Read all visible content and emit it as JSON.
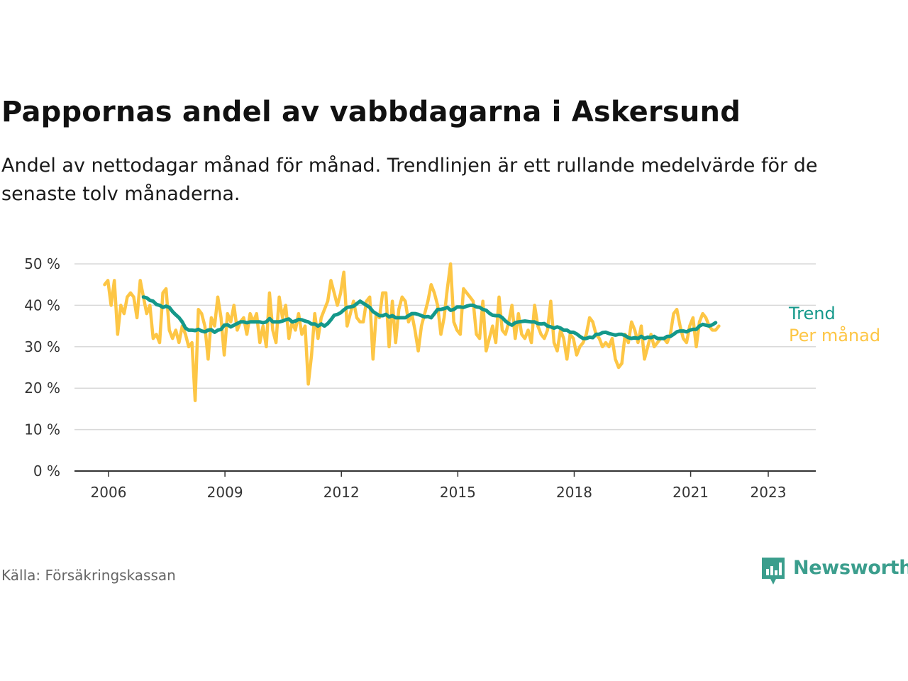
{
  "title": "Pappornas andel av vabbdagarna i Askersund",
  "subtitle": "Andel av nettodagar månad för månad. Trendlinjen är ett rullande medelvärde för de senaste tolv månaderna.",
  "source": "Källa: Försäkringskassan",
  "brand": "Newsworthy",
  "colors": {
    "trend": "#14988a",
    "monthly": "#fdc645",
    "grid": "#d9d9d9",
    "axis": "#333333",
    "brand": "#3b9e8d"
  },
  "chart_data": {
    "type": "line",
    "x_unit": "year",
    "xlim": [
      2006,
      2024.1
    ],
    "ylim": [
      0,
      50
    ],
    "y_ticks": [
      {
        "value": 0,
        "label": "0 %"
      },
      {
        "value": 10,
        "label": "10 %"
      },
      {
        "value": 20,
        "label": "20 %"
      },
      {
        "value": 30,
        "label": "30 %"
      },
      {
        "value": 40,
        "label": "40 %"
      },
      {
        "value": 50,
        "label": "50 %"
      }
    ],
    "x_ticks": [
      {
        "value": 2006,
        "label": "2006"
      },
      {
        "value": 2009,
        "label": "2009"
      },
      {
        "value": 2012,
        "label": "2012"
      },
      {
        "value": 2015,
        "label": "2015"
      },
      {
        "value": 2018,
        "label": "2018"
      },
      {
        "value": 2021,
        "label": "2021"
      },
      {
        "value": 2023,
        "label": "2023"
      }
    ],
    "grid": true,
    "series": [
      {
        "name": "Per månad",
        "x_start": 2005.9,
        "x_step": 0.0833,
        "values": [
          45,
          46,
          40,
          46,
          33,
          40,
          38,
          42,
          43,
          42,
          37,
          46,
          42,
          38,
          40,
          32,
          33,
          31,
          43,
          44,
          34,
          32,
          34,
          31,
          35,
          33,
          30,
          31,
          17,
          39,
          38,
          35,
          27,
          37,
          35,
          42,
          37,
          28,
          38,
          36,
          40,
          34,
          36,
          37,
          33,
          38,
          36,
          38,
          31,
          35,
          30,
          43,
          34,
          31,
          42,
          37,
          40,
          32,
          36,
          34,
          38,
          33,
          35,
          21,
          28,
          38,
          32,
          37,
          39,
          41,
          46,
          43,
          40,
          43,
          48,
          35,
          38,
          41,
          37,
          36,
          36,
          41,
          42,
          27,
          38,
          37,
          43,
          43,
          30,
          41,
          31,
          39,
          42,
          41,
          36,
          38,
          34,
          29,
          35,
          38,
          41,
          45,
          43,
          40,
          33,
          37,
          44,
          50,
          36,
          34,
          33,
          44,
          43,
          42,
          41,
          33,
          32,
          41,
          29,
          32,
          35,
          31,
          42,
          34,
          33,
          36,
          40,
          32,
          38,
          33,
          32,
          34,
          31,
          40,
          35,
          33,
          32,
          34,
          41,
          31,
          29,
          34,
          32,
          27,
          33,
          32,
          28,
          30,
          31,
          33,
          37,
          36,
          33,
          32,
          30,
          31,
          30,
          32,
          27,
          25,
          26,
          33,
          31,
          36,
          34,
          31,
          35,
          27,
          30,
          33,
          30,
          31,
          32,
          32,
          31,
          33,
          38,
          39,
          35,
          32,
          31,
          35,
          37,
          30,
          36,
          38,
          37,
          35,
          34,
          34,
          35
        ]
      },
      {
        "name": "Trend",
        "x_start": 2006.9,
        "x_step": 0.0833,
        "values": [
          42,
          41.8,
          41.2,
          41,
          40.2,
          40,
          39.5,
          39.8,
          39.5,
          38.5,
          37.7,
          37,
          36,
          34.5,
          34,
          34,
          33.9,
          34.2,
          33.8,
          33.6,
          34,
          34.1,
          33.5,
          34,
          34.2,
          35.2,
          35.3,
          34.8,
          35.2,
          35.6,
          36,
          36,
          35.8,
          36,
          36,
          36,
          36,
          35.8,
          36,
          36.8,
          36,
          36,
          36,
          36.2,
          36.5,
          36.7,
          36,
          36.2,
          36.6,
          36.5,
          36.2,
          36,
          35.5,
          35.5,
          35,
          35.5,
          35,
          35.6,
          36.5,
          37.6,
          37.8,
          38.2,
          38.9,
          39.5,
          39.6,
          39.8,
          40.4,
          41,
          40.5,
          40,
          39.5,
          38.5,
          38,
          37.5,
          37.5,
          37.8,
          37.2,
          37.5,
          37,
          37,
          37,
          37,
          37.5,
          38,
          38,
          37.8,
          37.5,
          37.2,
          37.3,
          37,
          38,
          39,
          39,
          39.2,
          39.5,
          38.8,
          39,
          39.6,
          39.6,
          39.5,
          39.8,
          40,
          40,
          39.6,
          39.5,
          39,
          38.8,
          38.1,
          37.6,
          37.5,
          37.5,
          37,
          36.2,
          35.6,
          35.2,
          35.8,
          36,
          36.1,
          36.2,
          36.1,
          36,
          36,
          35.6,
          35.5,
          35.6,
          35,
          34.8,
          34.5,
          34.8,
          34.5,
          34,
          34,
          33.5,
          33.5,
          33.1,
          32.5,
          32,
          32,
          32.3,
          32.2,
          33,
          33,
          33.4,
          33.5,
          33.2,
          33,
          32.8,
          33,
          33,
          32.7,
          32.2,
          32,
          32.2,
          32,
          32.5,
          32,
          32.3,
          32.2,
          32.5,
          32,
          32,
          32,
          32.5,
          32.5,
          33,
          33.6,
          33.8,
          33.8,
          33.6,
          34,
          34.2,
          34.2,
          35,
          35.4,
          35.2,
          35,
          35.3,
          35.8
        ]
      }
    ]
  }
}
